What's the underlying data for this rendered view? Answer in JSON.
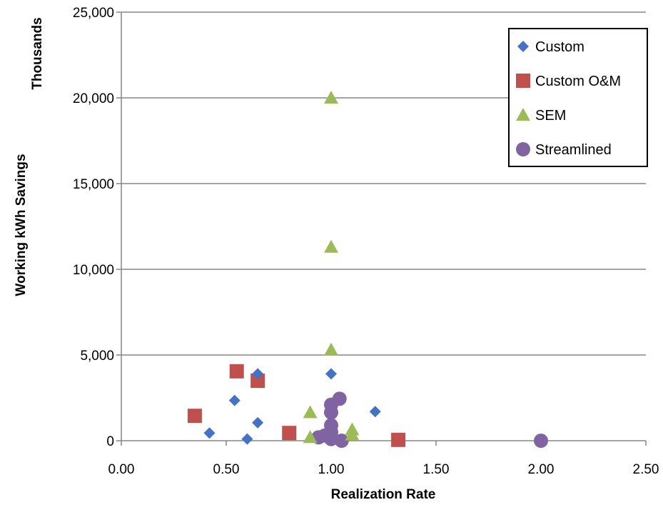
{
  "chart_data": {
    "type": "scatter",
    "title": "",
    "xlabel": "Realization Rate",
    "ylabel": "Working kWh Savings",
    "y_unit_label": "Thousands",
    "xlim": [
      0,
      2.5
    ],
    "ylim": [
      0,
      25000
    ],
    "x_ticks": [
      "0.00",
      "0.50",
      "1.00",
      "1.50",
      "2.00",
      "2.50"
    ],
    "y_ticks": [
      "0",
      "5,000",
      "10,000",
      "15,000",
      "20,000",
      "25,000"
    ],
    "grid": "horizontal",
    "legend_position": "top-right",
    "series": [
      {
        "name": "Custom",
        "marker": "diamond",
        "color": "#4472C4",
        "points": [
          {
            "x": 0.42,
            "y": 450
          },
          {
            "x": 0.54,
            "y": 2350
          },
          {
            "x": 0.6,
            "y": 100
          },
          {
            "x": 0.65,
            "y": 1050
          },
          {
            "x": 0.65,
            "y": 3900
          },
          {
            "x": 1.0,
            "y": 3900
          },
          {
            "x": 1.21,
            "y": 1700
          }
        ]
      },
      {
        "name": "Custom O&M",
        "marker": "square",
        "color": "#C0504D",
        "points": [
          {
            "x": 0.35,
            "y": 1450
          },
          {
            "x": 0.55,
            "y": 4050
          },
          {
            "x": 0.65,
            "y": 3500
          },
          {
            "x": 0.8,
            "y": 450
          },
          {
            "x": 1.32,
            "y": 50
          }
        ]
      },
      {
        "name": "SEM",
        "marker": "triangle",
        "color": "#9BBB59",
        "points": [
          {
            "x": 0.9,
            "y": 1650
          },
          {
            "x": 0.9,
            "y": 200
          },
          {
            "x": 1.0,
            "y": 20000
          },
          {
            "x": 1.0,
            "y": 11300
          },
          {
            "x": 1.0,
            "y": 5300
          },
          {
            "x": 1.1,
            "y": 650
          },
          {
            "x": 1.1,
            "y": 350
          }
        ]
      },
      {
        "name": "Streamlined",
        "marker": "circle",
        "color": "#8064A2",
        "points": [
          {
            "x": 0.94,
            "y": 200
          },
          {
            "x": 0.97,
            "y": 300
          },
          {
            "x": 1.0,
            "y": 2100
          },
          {
            "x": 1.0,
            "y": 1650
          },
          {
            "x": 1.0,
            "y": 900
          },
          {
            "x": 1.0,
            "y": 500
          },
          {
            "x": 1.0,
            "y": 100
          },
          {
            "x": 1.04,
            "y": 2450
          },
          {
            "x": 1.05,
            "y": 0
          },
          {
            "x": 2.0,
            "y": 0
          }
        ]
      }
    ]
  }
}
